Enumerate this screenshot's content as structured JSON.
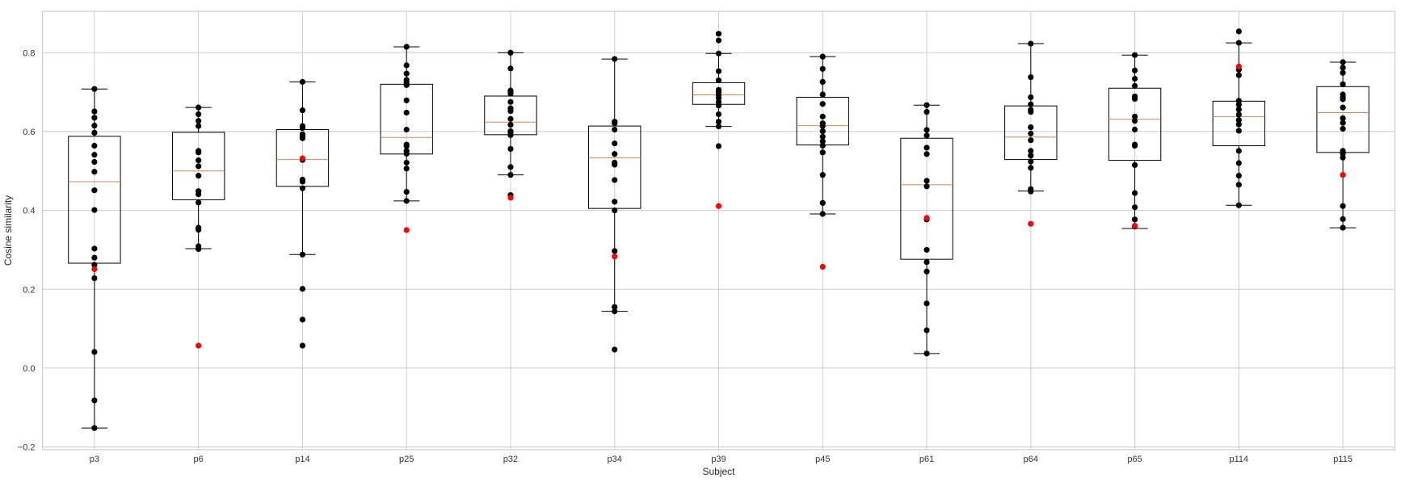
{
  "chart_data": {
    "type": "box",
    "title": "",
    "xlabel": "Subject",
    "ylabel": "Cosine similarity",
    "ylim": [
      -0.207,
      0.905
    ],
    "yticks": [
      -0.2,
      0.0,
      0.2,
      0.4,
      0.6,
      0.8
    ],
    "ytick_labels": [
      "−0.2",
      "0.0",
      "0.2",
      "0.4",
      "0.6",
      "0.8"
    ],
    "grid": true,
    "colors": {
      "box": "#000000",
      "median": "#dd8452",
      "points": "#000000",
      "highlight": "#ff0000",
      "grid": "#cccccc"
    },
    "categories": [
      "p3",
      "p6",
      "p14",
      "p25",
      "p32",
      "p34",
      "p39",
      "p45",
      "p61",
      "p64",
      "p65",
      "p114",
      "p115"
    ],
    "boxes": [
      {
        "q1": 0.266,
        "median": 0.473,
        "q3": 0.588,
        "whislo": -0.152,
        "whishi": 0.708,
        "highlight": 0.251,
        "points": [
          0.708,
          0.651,
          0.635,
          0.615,
          0.597,
          0.564,
          0.541,
          0.523,
          0.498,
          0.451,
          0.401,
          0.303,
          0.28,
          0.262,
          0.228,
          0.041,
          -0.082,
          -0.152
        ]
      },
      {
        "q1": 0.427,
        "median": 0.5,
        "q3": 0.598,
        "whislo": 0.303,
        "whishi": 0.661,
        "highlight": 0.057,
        "points": [
          0.661,
          0.644,
          0.627,
          0.614,
          0.551,
          0.547,
          0.527,
          0.512,
          0.488,
          0.449,
          0.441,
          0.42,
          0.356,
          0.351,
          0.309,
          0.302
        ]
      },
      {
        "q1": 0.461,
        "median": 0.529,
        "q3": 0.605,
        "whislo": 0.288,
        "whishi": 0.726,
        "highlight": 0.532,
        "points": [
          0.726,
          0.654,
          0.614,
          0.609,
          0.593,
          0.588,
          0.583,
          0.528,
          0.478,
          0.473,
          0.456,
          0.288,
          0.201,
          0.123,
          0.057
        ]
      },
      {
        "q1": 0.543,
        "median": 0.585,
        "q3": 0.72,
        "whislo": 0.424,
        "whishi": 0.815,
        "highlight": 0.35,
        "points": [
          0.815,
          0.768,
          0.747,
          0.731,
          0.724,
          0.718,
          0.679,
          0.648,
          0.605,
          0.567,
          0.563,
          0.551,
          0.544,
          0.521,
          0.506,
          0.447,
          0.424
        ]
      },
      {
        "q1": 0.592,
        "median": 0.624,
        "q3": 0.69,
        "whislo": 0.49,
        "whishi": 0.8,
        "highlight": 0.432,
        "points": [
          0.8,
          0.76,
          0.704,
          0.7,
          0.696,
          0.675,
          0.659,
          0.652,
          0.632,
          0.617,
          0.601,
          0.597,
          0.591,
          0.556,
          0.51,
          0.49,
          0.439
        ]
      },
      {
        "q1": 0.405,
        "median": 0.533,
        "q3": 0.614,
        "whislo": 0.144,
        "whishi": 0.784,
        "highlight": 0.283,
        "points": [
          0.784,
          0.625,
          0.621,
          0.605,
          0.57,
          0.543,
          0.521,
          0.516,
          0.477,
          0.422,
          0.4,
          0.297,
          0.155,
          0.144,
          0.047
        ]
      },
      {
        "q1": 0.669,
        "median": 0.693,
        "q3": 0.724,
        "whislo": 0.613,
        "whishi": 0.798,
        "highlight": 0.411,
        "points": [
          0.848,
          0.831,
          0.798,
          0.753,
          0.73,
          0.706,
          0.7,
          0.693,
          0.685,
          0.675,
          0.666,
          0.644,
          0.625,
          0.613,
          0.563
        ]
      },
      {
        "q1": 0.566,
        "median": 0.615,
        "q3": 0.687,
        "whislo": 0.391,
        "whishi": 0.79,
        "highlight": 0.257,
        "points": [
          0.79,
          0.759,
          0.726,
          0.694,
          0.67,
          0.638,
          0.621,
          0.614,
          0.601,
          0.587,
          0.575,
          0.564,
          0.547,
          0.49,
          0.419,
          0.391
        ]
      },
      {
        "q1": 0.276,
        "median": 0.465,
        "q3": 0.583,
        "whislo": 0.037,
        "whishi": 0.667,
        "highlight": 0.381,
        "points": [
          0.667,
          0.65,
          0.604,
          0.59,
          0.559,
          0.543,
          0.475,
          0.461,
          0.377,
          0.3,
          0.269,
          0.245,
          0.164,
          0.096,
          0.037
        ]
      },
      {
        "q1": 0.529,
        "median": 0.586,
        "q3": 0.665,
        "whislo": 0.449,
        "whishi": 0.823,
        "highlight": 0.366,
        "points": [
          0.823,
          0.738,
          0.687,
          0.669,
          0.655,
          0.65,
          0.611,
          0.595,
          0.578,
          0.551,
          0.539,
          0.524,
          0.508,
          0.454,
          0.448
        ]
      },
      {
        "q1": 0.527,
        "median": 0.631,
        "q3": 0.71,
        "whislo": 0.354,
        "whishi": 0.794,
        "highlight": 0.361,
        "points": [
          0.794,
          0.755,
          0.734,
          0.716,
          0.689,
          0.683,
          0.638,
          0.627,
          0.605,
          0.567,
          0.564,
          0.515,
          0.444,
          0.408,
          0.377,
          0.359
        ]
      },
      {
        "q1": 0.564,
        "median": 0.638,
        "q3": 0.677,
        "whislo": 0.413,
        "whishi": 0.825,
        "highlight": 0.765,
        "points": [
          0.854,
          0.825,
          0.757,
          0.743,
          0.678,
          0.668,
          0.656,
          0.643,
          0.629,
          0.618,
          0.602,
          0.551,
          0.52,
          0.488,
          0.465,
          0.413
        ]
      },
      {
        "q1": 0.547,
        "median": 0.648,
        "q3": 0.714,
        "whislo": 0.356,
        "whishi": 0.776,
        "highlight": 0.49,
        "points": [
          0.776,
          0.762,
          0.749,
          0.72,
          0.694,
          0.687,
          0.682,
          0.661,
          0.634,
          0.622,
          0.607,
          0.551,
          0.544,
          0.534,
          0.411,
          0.378,
          0.356
        ]
      }
    ]
  }
}
